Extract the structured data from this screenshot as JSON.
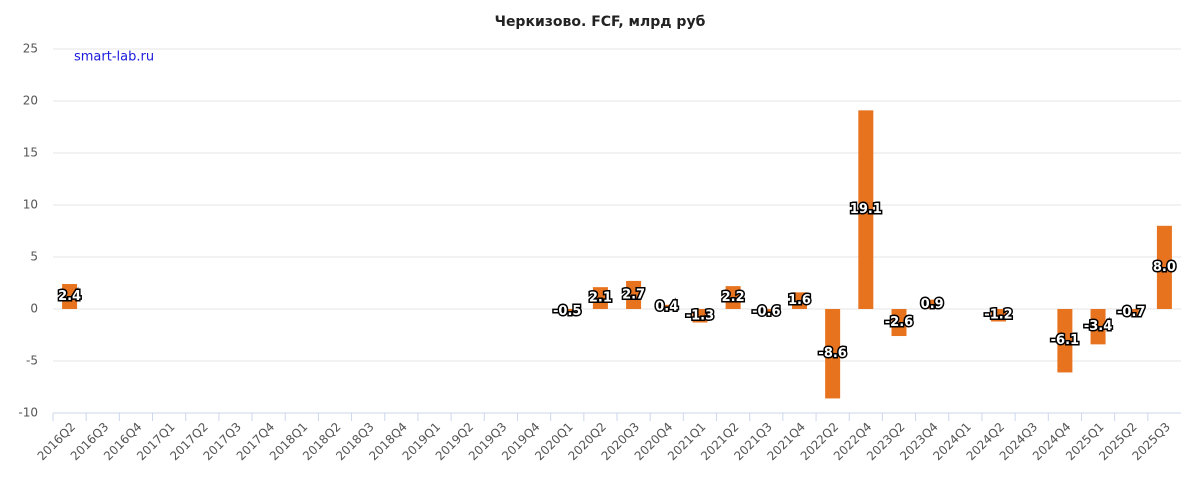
{
  "chart_data": {
    "type": "bar",
    "title": "Черкизово. FCF, млрд руб",
    "annotation": "smart-lab.ru",
    "categories": [
      "2016Q2",
      "2016Q3",
      "2016Q4",
      "2017Q1",
      "2017Q2",
      "2017Q3",
      "2017Q4",
      "2018Q1",
      "2018Q2",
      "2018Q3",
      "2018Q4",
      "2019Q1",
      "2019Q2",
      "2019Q3",
      "2019Q4",
      "2020Q1",
      "2020Q2",
      "2020Q3",
      "2020Q4",
      "2021Q1",
      "2021Q2",
      "2021Q3",
      "2021Q4",
      "2022Q2",
      "2022Q4",
      "2023Q2",
      "2023Q4",
      "2024Q1",
      "2024Q2",
      "2024Q3",
      "2024Q4",
      "2025Q1",
      "2025Q2",
      "2025Q3"
    ],
    "values": [
      2.4,
      null,
      null,
      null,
      null,
      null,
      null,
      null,
      null,
      null,
      null,
      null,
      null,
      null,
      null,
      -0.5,
      2.1,
      2.7,
      0.4,
      -1.3,
      2.2,
      -0.6,
      1.6,
      -8.6,
      19.1,
      -2.6,
      0.9,
      null,
      -1.2,
      null,
      -6.1,
      -3.4,
      -0.7,
      8.0
    ],
    "value_labels": [
      "2.4",
      null,
      null,
      null,
      null,
      null,
      null,
      null,
      null,
      null,
      null,
      null,
      null,
      null,
      null,
      "-0.5",
      "2.1",
      "2.7",
      "0.4",
      "-1.3",
      "2.2",
      "-0.6",
      "1.6",
      "-8.6",
      "19.1",
      "-2.6",
      "0.9",
      null,
      "-1.2",
      null,
      "-6.1",
      "-3.4",
      "-0.7",
      "8.0"
    ],
    "color": "#e8731e",
    "ylim": [
      -10,
      25
    ],
    "yticks": [
      -10,
      -5,
      0,
      5,
      10,
      15,
      20,
      25
    ],
    "grid": true
  }
}
